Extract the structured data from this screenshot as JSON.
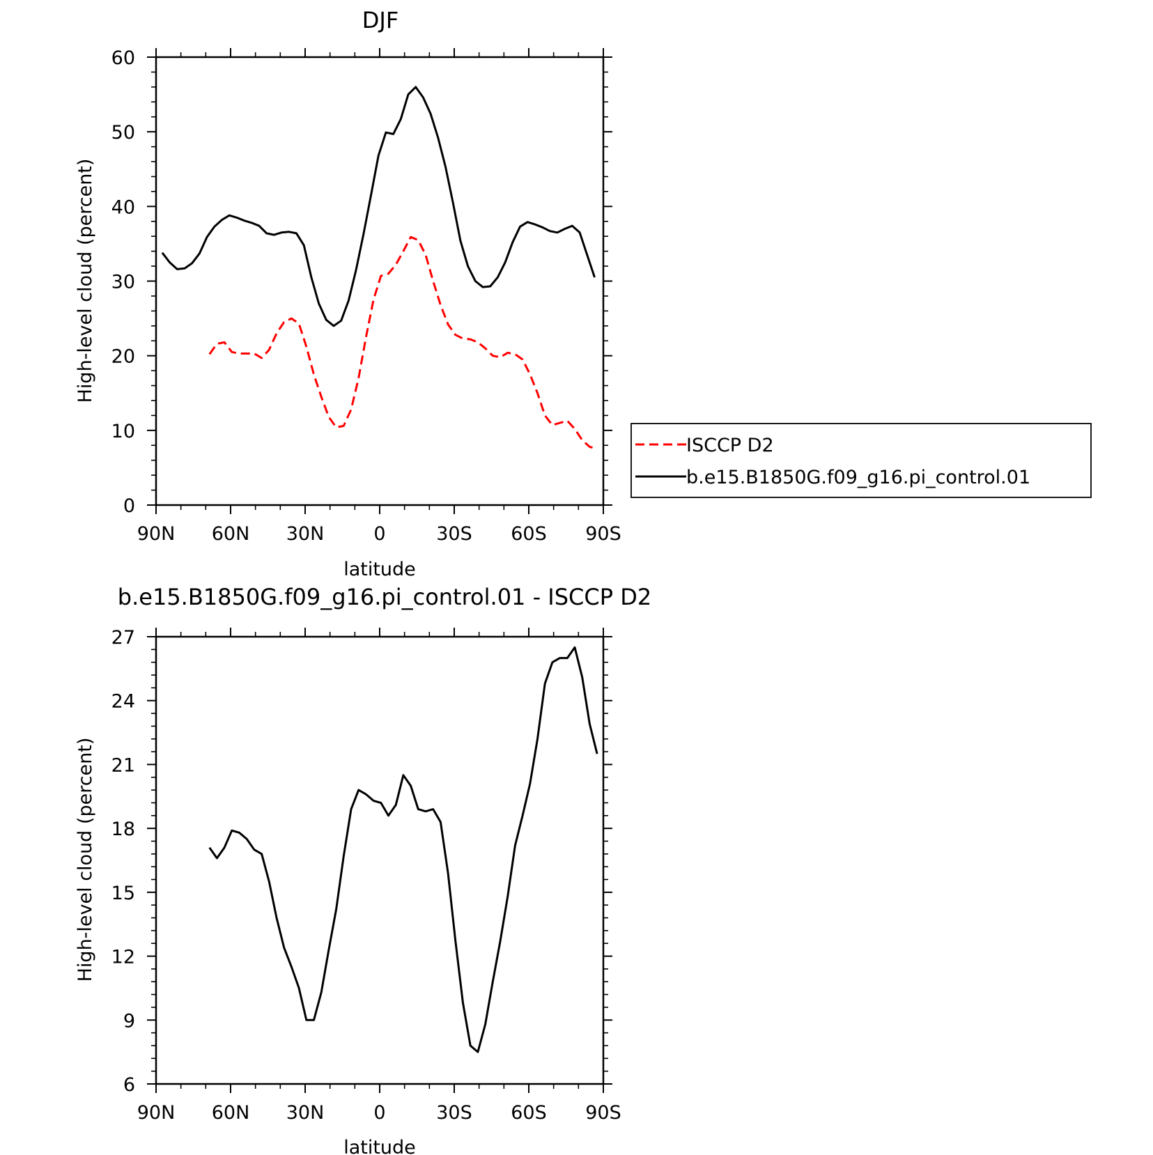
{
  "chart_data": [
    {
      "type": "line",
      "title": "DJF",
      "xlabel": "latitude",
      "ylabel": "High-level cloud (percent)",
      "xlim": [
        -90,
        90
      ],
      "ylim": [
        0,
        60
      ],
      "x_ticks": [
        -90,
        -60,
        -30,
        0,
        30,
        60,
        90
      ],
      "x_tick_labels": [
        "90N",
        "60N",
        "30N",
        "0",
        "30S",
        "60S",
        "90S"
      ],
      "y_ticks": [
        0,
        10,
        20,
        30,
        40,
        50,
        60
      ],
      "y_tick_labels": [
        "0",
        "10",
        "20",
        "30",
        "40",
        "50",
        "60"
      ],
      "legend_position": "right",
      "series": [
        {
          "name": "ISCCP D2",
          "color": "#ff0000",
          "dash": "dashed",
          "x": [
            -68.5,
            -65.5,
            -62.5,
            -59.5,
            -56.5,
            -53.5,
            -50.5,
            -47.5,
            -44.5,
            -41.5,
            -38.5,
            -35.5,
            -32.5,
            -29.5,
            -26.5,
            -23.5,
            -20.5,
            -17.5,
            -14.5,
            -11.5,
            -8.5,
            -5.5,
            -2.5,
            0.5,
            3.5,
            6.5,
            9.5,
            12.5,
            15.5,
            18.5,
            21.5,
            24.5,
            27.5,
            30.5,
            33.5,
            36.5,
            39.5,
            42.5,
            45.5,
            48.5,
            51.5,
            54.5,
            57.5,
            60.5,
            63.5,
            66.5,
            69.5,
            72.5,
            75.5,
            78.5,
            81.5,
            84.5,
            87.5
          ],
          "y": [
            20.2,
            21.6,
            21.8,
            20.5,
            20.3,
            20.3,
            20.3,
            19.7,
            20.8,
            23,
            24.5,
            25,
            24.3,
            21.2,
            17.5,
            14.5,
            11.8,
            10.4,
            10.6,
            12.8,
            17,
            22.5,
            27.5,
            30.7,
            31,
            32.2,
            34,
            35.9,
            35.5,
            33.5,
            30,
            26.8,
            24.2,
            22.8,
            22.3,
            22.2,
            21.8,
            21,
            20,
            19.8,
            20.4,
            20.2,
            19.5,
            17.5,
            15,
            12,
            10.7,
            11,
            11.3,
            10.2,
            8.7,
            7.8,
            7.5
          ]
        },
        {
          "name": "b.e15.B1850G.f09_g16.pi_control.01",
          "color": "#000000",
          "dash": "solid",
          "x": [
            -87.5,
            -84.5,
            -81.5,
            -78.5,
            -75.5,
            -72.5,
            -69.5,
            -66.5,
            -63.5,
            -60.5,
            -57.5,
            -54.5,
            -51.5,
            -48.5,
            -45.5,
            -42.5,
            -39.5,
            -36.5,
            -33.5,
            -30.5,
            -27.5,
            -24.5,
            -21.5,
            -18.5,
            -15.5,
            -12.5,
            -9.5,
            -6.5,
            -3.5,
            -0.5,
            2.5,
            5.5,
            8.5,
            11.5,
            14.5,
            17.5,
            20.5,
            23.5,
            26.5,
            29.5,
            32.5,
            35.5,
            38.5,
            41.5,
            44.5,
            47.5,
            50.5,
            53.5,
            56.5,
            59.5,
            62.5,
            65.5,
            68.5,
            71.5,
            74.5,
            77.5,
            80.5,
            83.5,
            86.5
          ],
          "y": [
            33.8,
            32.5,
            31.6,
            31.7,
            32.4,
            33.7,
            35.9,
            37.3,
            38.2,
            38.8,
            38.5,
            38.1,
            37.8,
            37.4,
            36.4,
            36.2,
            36.5,
            36.6,
            36.4,
            34.8,
            30.5,
            27,
            24.8,
            24,
            24.7,
            27.4,
            31.5,
            36.3,
            41.5,
            46.8,
            49.9,
            49.7,
            51.7,
            55,
            56,
            54.6,
            52.4,
            49.2,
            45.3,
            40.5,
            35.4,
            32,
            30,
            29.2,
            29.3,
            30.5,
            32.5,
            35.2,
            37.3,
            37.9,
            37.6,
            37.2,
            36.7,
            36.5,
            37,
            37.4,
            36.5,
            33.5,
            30.5
          ]
        }
      ]
    },
    {
      "type": "line",
      "title": "b.e15.B1850G.f09_g16.pi_control.01 - ISCCP D2",
      "xlabel": "latitude",
      "ylabel": "High-level cloud (percent)",
      "xlim": [
        -90,
        90
      ],
      "ylim": [
        6,
        27
      ],
      "x_ticks": [
        -90,
        -60,
        -30,
        0,
        30,
        60,
        90
      ],
      "x_tick_labels": [
        "90N",
        "60N",
        "30N",
        "0",
        "30S",
        "60S",
        "90S"
      ],
      "y_ticks": [
        6,
        9,
        12,
        15,
        18,
        21,
        24,
        27
      ],
      "y_tick_labels": [
        "6",
        "9",
        "12",
        "15",
        "18",
        "21",
        "24",
        "27"
      ],
      "series": [
        {
          "color": "#000000",
          "dash": "solid",
          "x": [
            -68.5,
            -65.5,
            -62.5,
            -59.5,
            -56.5,
            -53.5,
            -50.5,
            -47.5,
            -44.5,
            -41.5,
            -38.5,
            -35.5,
            -32.5,
            -29.5,
            -26.5,
            -23.5,
            -20.5,
            -17.5,
            -14.5,
            -11.5,
            -8.5,
            -5.5,
            -2.5,
            0.5,
            3.5,
            6.5,
            9.5,
            12.5,
            15.5,
            18.5,
            21.5,
            24.5,
            27.5,
            30.5,
            33.5,
            36.5,
            39.5,
            42.5,
            45.5,
            48.5,
            51.5,
            54.5,
            57.5,
            60.5,
            63.5,
            66.5,
            69.5,
            72.5,
            75.5,
            78.5,
            81.5,
            84.5,
            87.5
          ],
          "y": [
            17.1,
            16.6,
            17.1,
            17.9,
            17.8,
            17.5,
            17,
            16.8,
            15.5,
            13.8,
            12.4,
            11.5,
            10.5,
            9,
            9,
            10.3,
            12.3,
            14.2,
            16.7,
            18.9,
            19.8,
            19.6,
            19.3,
            19.2,
            18.6,
            19.1,
            20.5,
            20,
            18.9,
            18.8,
            18.9,
            18.3,
            15.9,
            12.7,
            9.8,
            7.8,
            7.5,
            8.8,
            10.8,
            12.7,
            14.8,
            17.2,
            18.6,
            20.1,
            22.2,
            24.8,
            25.8,
            26,
            26,
            26.5,
            25.1,
            22.9,
            21.5
          ]
        }
      ]
    }
  ]
}
